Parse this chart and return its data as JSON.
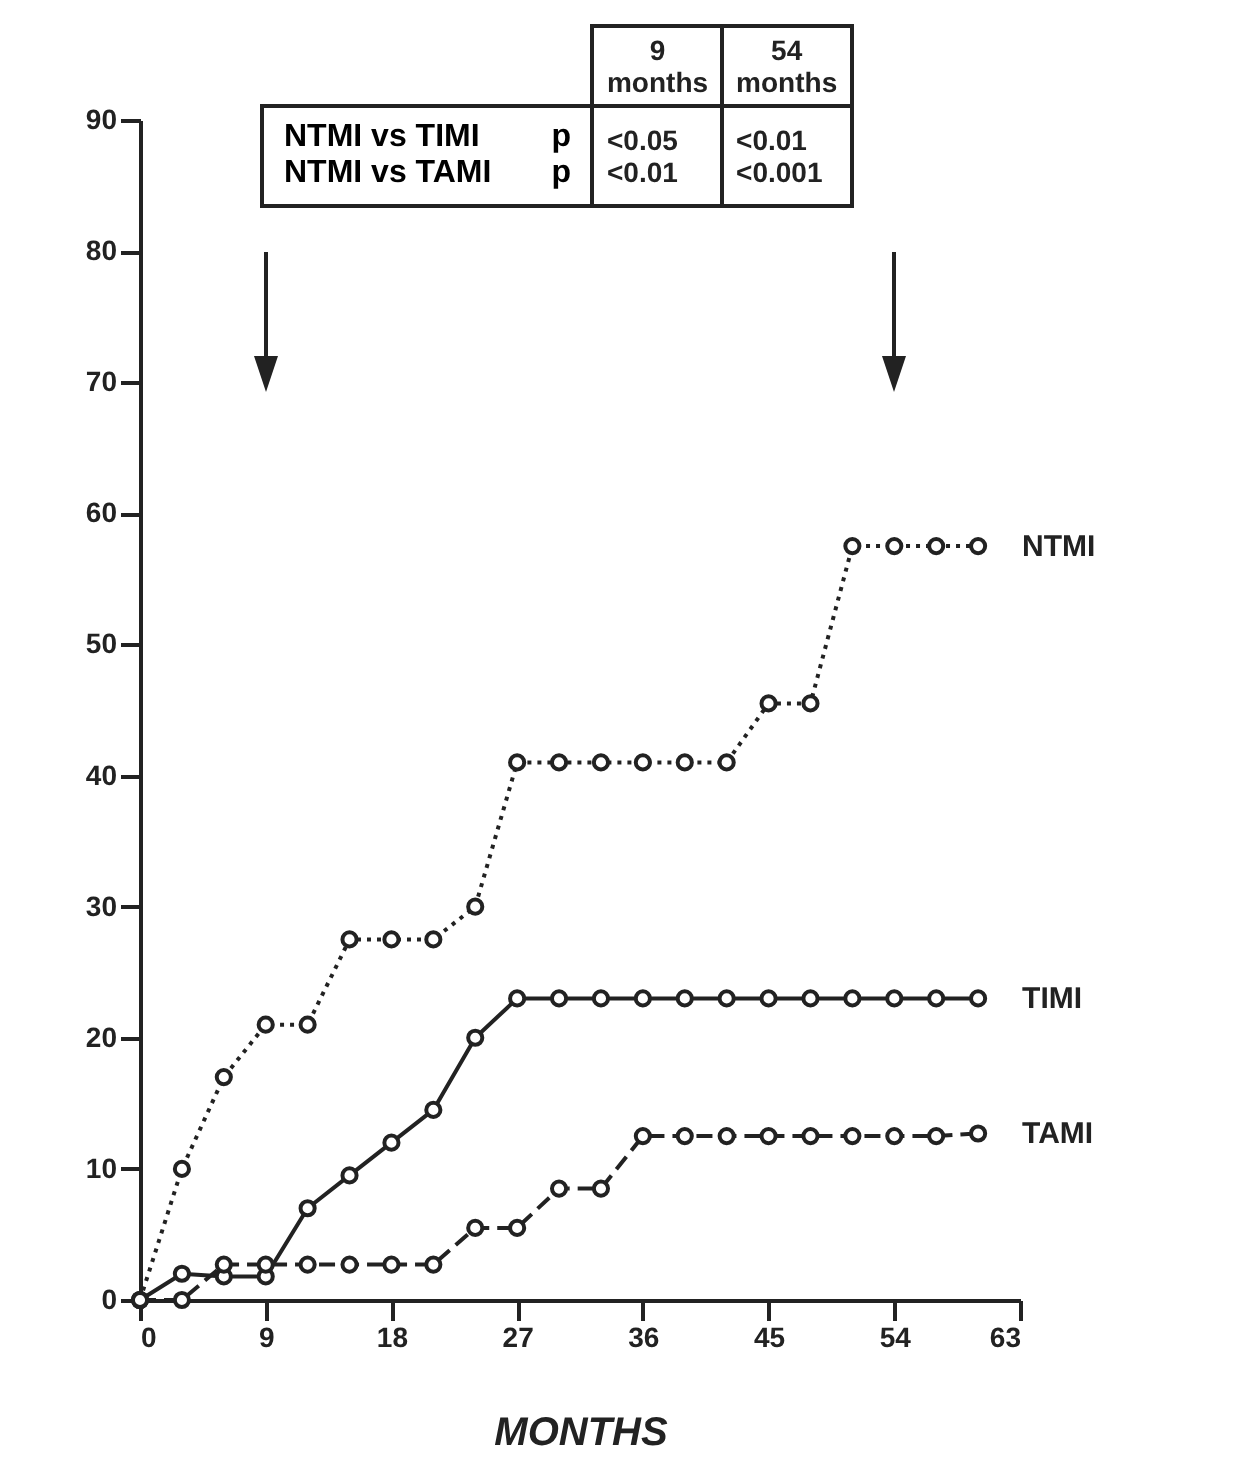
{
  "chart_data": {
    "type": "line",
    "xlabel": "MONTHS",
    "xlim": [
      0,
      63
    ],
    "xticks": [
      0,
      9,
      18,
      27,
      36,
      45,
      54,
      63
    ],
    "ylim": [
      0,
      90
    ],
    "yticks": [
      0,
      10,
      20,
      30,
      40,
      50,
      60,
      70,
      80,
      90
    ],
    "grid": false,
    "marker": "circle",
    "annotations": [
      "9 months",
      "54 months",
      "NTMI vs TIMI",
      "NTMI vs TAMI",
      "p",
      "p",
      "<0.05",
      "<0.01",
      "<0.01",
      "<0.001"
    ],
    "x": [
      0,
      3,
      6,
      9,
      12,
      15,
      18,
      21,
      24,
      27,
      30,
      33,
      36,
      39,
      42,
      45,
      48,
      51,
      54,
      57,
      60
    ],
    "series": [
      {
        "name": "NTMI",
        "color": "#222222",
        "line_style": "dotted",
        "values": [
          0,
          10,
          17,
          21,
          21,
          27.5,
          27.5,
          27.5,
          30,
          41,
          41,
          41,
          41,
          41,
          41,
          45.5,
          45.5,
          57.5,
          57.5,
          57.5,
          57.5
        ]
      },
      {
        "name": "TIMI",
        "color": "#222222",
        "line_style": "solid",
        "values": [
          0,
          2,
          1.8,
          1.8,
          7,
          9.5,
          12,
          14.5,
          20,
          23,
          23,
          23,
          23,
          23,
          23,
          23,
          23,
          23,
          23,
          23,
          23
        ]
      },
      {
        "name": "TAMI",
        "color": "#222222",
        "line_style": "dashed",
        "values": [
          0,
          0,
          2.7,
          2.7,
          2.7,
          2.7,
          2.7,
          2.7,
          5.5,
          5.5,
          8.5,
          8.5,
          12.5,
          12.5,
          12.5,
          12.5,
          12.5,
          12.5,
          12.5,
          12.5,
          12.7
        ]
      }
    ]
  }
}
